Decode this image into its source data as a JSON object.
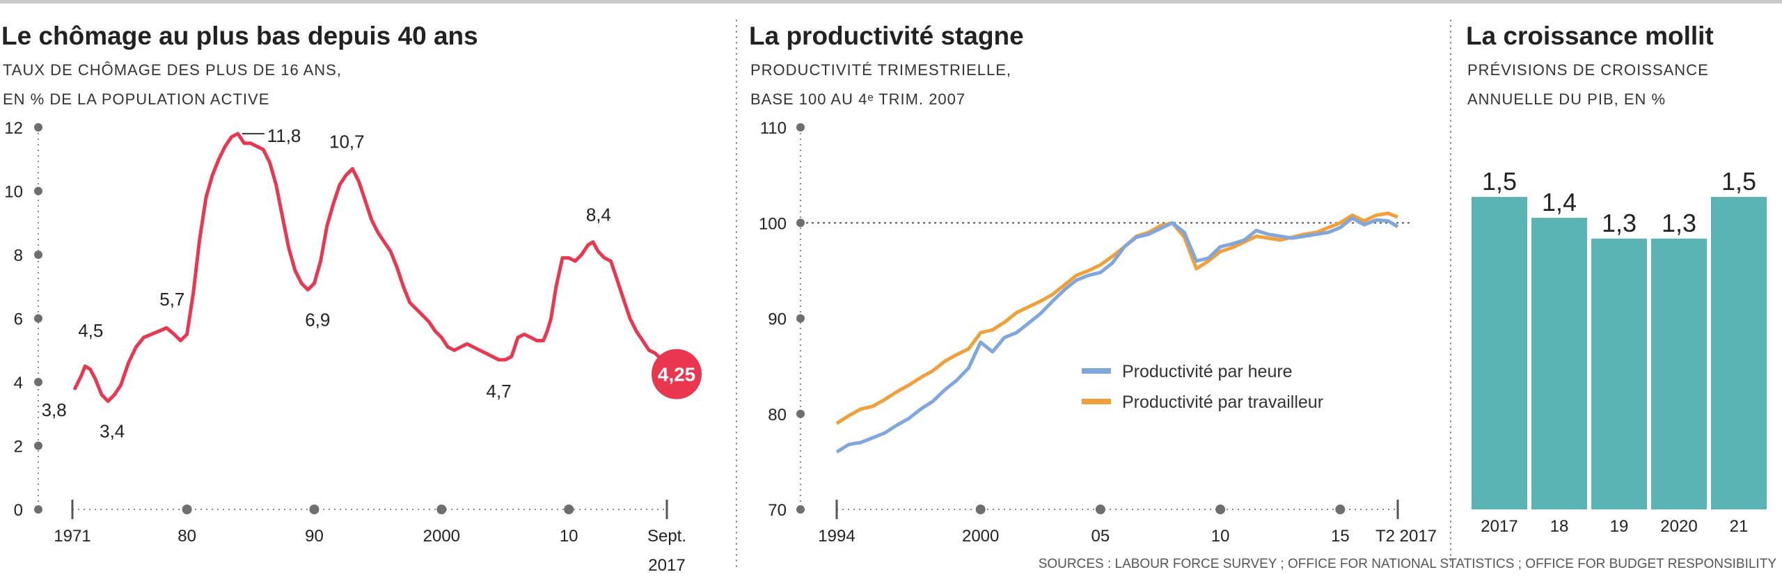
{
  "panels": [
    {
      "title": "Le chômage au plus bas depuis 40 ans",
      "subtitle_line1": "TAUX DE CHÔMAGE DES PLUS DE 16 ANS,",
      "subtitle_line2": "EN % DE LA POPULATION ACTIVE"
    },
    {
      "title": "La productivité stagne",
      "subtitle_line1": "PRODUCTIVITÉ TRIMESTRIELLE,",
      "subtitle_line2": "BASE 100 AU 4ᵉ TRIM. 2007"
    },
    {
      "title": "La croissance mollit",
      "subtitle_line1": "PRÉVISIONS DE CROISSANCE",
      "subtitle_line2": "ANNUELLE DU PIB, EN %"
    }
  ],
  "source": "SOURCES : LABOUR FORCE SURVEY ; OFFICE FOR NATIONAL STATISTICS ; OFFICE FOR BUDGET RESPONSIBILITY",
  "colors": {
    "unemployment": "#e8374f",
    "per_hour": "#7fa6dd",
    "per_worker": "#f0a03a",
    "bars": "#5ab4b4",
    "text": "#222222",
    "axis": "#666666"
  },
  "chart_data": [
    {
      "type": "line",
      "title": "Le chômage au plus bas depuis 40 ans",
      "ylabel": "TAUX DE CHÔMAGE DES PLUS DE 16 ANS, EN % DE LA POPULATION ACTIVE",
      "xlim": [
        1971,
        2017.7
      ],
      "ylim": [
        0,
        12
      ],
      "yticks": [
        "0",
        "2",
        "4",
        "6",
        "8",
        "10",
        "12"
      ],
      "xticks": [
        {
          "x": 1971,
          "label": "1971"
        },
        {
          "x": 1980,
          "label": "80"
        },
        {
          "x": 1990,
          "label": "90"
        },
        {
          "x": 2000,
          "label": "2000"
        },
        {
          "x": 2010,
          "label": "10"
        },
        {
          "x": 2017.7,
          "label": "Sept.",
          "label2": "2017"
        }
      ],
      "x": [
        1971.2,
        1971.7,
        1972.0,
        1972.4,
        1972.8,
        1973.3,
        1973.8,
        1974.3,
        1974.8,
        1975.4,
        1976.0,
        1976.6,
        1977.2,
        1977.8,
        1978.4,
        1979.0,
        1979.5,
        1980.0,
        1980.5,
        1981.0,
        1981.5,
        1982.0,
        1982.5,
        1983.0,
        1983.5,
        1984.0,
        1984.5,
        1985.0,
        1985.5,
        1986.0,
        1986.5,
        1987.0,
        1987.5,
        1988.0,
        1988.5,
        1989.0,
        1989.5,
        1990.0,
        1990.5,
        1991.0,
        1991.5,
        1992.0,
        1992.5,
        1993.0,
        1993.5,
        1994.0,
        1994.5,
        1995.0,
        1995.5,
        1996.0,
        1996.5,
        1997.0,
        1997.5,
        1998.0,
        1998.5,
        1999.0,
        1999.5,
        2000.0,
        2000.5,
        2001.0,
        2001.5,
        2002.0,
        2002.5,
        2003.0,
        2003.5,
        2004.0,
        2004.5,
        2005.0,
        2005.5,
        2006.0,
        2006.5,
        2007.0,
        2007.5,
        2008.0,
        2008.3,
        2008.6,
        2009.0,
        2009.5,
        2010.0,
        2010.5,
        2011.0,
        2011.5,
        2011.9,
        2012.3,
        2012.8,
        2013.3,
        2013.8,
        2014.3,
        2014.8,
        2015.3,
        2015.8,
        2016.3,
        2016.8,
        2017.3,
        2017.7
      ],
      "series": [
        {
          "values": [
            3.8,
            4.2,
            4.5,
            4.4,
            4.1,
            3.6,
            3.4,
            3.6,
            3.9,
            4.6,
            5.1,
            5.4,
            5.5,
            5.6,
            5.7,
            5.5,
            5.3,
            5.5,
            6.8,
            8.5,
            9.8,
            10.5,
            11.0,
            11.4,
            11.7,
            11.8,
            11.5,
            11.5,
            11.4,
            11.3,
            10.9,
            10.2,
            9.2,
            8.2,
            7.5,
            7.1,
            6.9,
            7.1,
            7.8,
            8.9,
            9.6,
            10.2,
            10.5,
            10.7,
            10.3,
            9.7,
            9.1,
            8.7,
            8.4,
            8.1,
            7.6,
            7.0,
            6.5,
            6.3,
            6.1,
            5.9,
            5.6,
            5.4,
            5.1,
            5.0,
            5.1,
            5.2,
            5.1,
            5.0,
            4.9,
            4.8,
            4.7,
            4.7,
            4.8,
            5.4,
            5.5,
            5.4,
            5.3,
            5.3,
            5.6,
            6.0,
            7.0,
            7.9,
            7.9,
            7.8,
            8.0,
            8.3,
            8.4,
            8.1,
            7.9,
            7.8,
            7.2,
            6.6,
            6.0,
            5.6,
            5.3,
            5.0,
            4.9,
            4.7,
            4.25
          ]
        }
      ],
      "annotations": [
        {
          "label": "3,8",
          "x": 1971.2,
          "y": 3.8
        },
        {
          "label": "4,5",
          "x": 1972.0,
          "y": 4.5
        },
        {
          "label": "3,4",
          "x": 1973.8,
          "y": 3.4
        },
        {
          "label": "5,7",
          "x": 1978.4,
          "y": 5.7
        },
        {
          "label": "11,8",
          "x": 1984.0,
          "y": 11.8
        },
        {
          "label": "6,9",
          "x": 1989.5,
          "y": 6.9
        },
        {
          "label": "10,7",
          "x": 1993.0,
          "y": 10.7
        },
        {
          "label": "4,7",
          "x": 2004.5,
          "y": 4.7
        },
        {
          "label": "8,4",
          "x": 2011.9,
          "y": 8.4
        },
        {
          "label": "4,25",
          "x": 2017.7,
          "y": 4.25
        }
      ]
    },
    {
      "type": "line",
      "title": "La productivité stagne",
      "ylabel": "PRODUCTIVITÉ TRIMESTRIELLE, BASE 100 AU 4ᵉ TRIM. 2007",
      "xlim": [
        1994,
        2017.4
      ],
      "ylim": [
        70,
        110
      ],
      "yticks": [
        "70",
        "80",
        "90",
        "100",
        "110"
      ],
      "reference_line": 100,
      "xticks": [
        {
          "x": 1994,
          "label": "1994"
        },
        {
          "x": 2000,
          "label": "2000"
        },
        {
          "x": 2005,
          "label": "05"
        },
        {
          "x": 2010,
          "label": "10"
        },
        {
          "x": 2015,
          "label": "15"
        },
        {
          "x": 2017.4,
          "label": "T2 2017"
        }
      ],
      "x": [
        1994.0,
        1994.5,
        1995.0,
        1995.5,
        1996.0,
        1996.5,
        1997.0,
        1997.5,
        1998.0,
        1998.5,
        1999.0,
        1999.5,
        2000.0,
        2000.5,
        2001.0,
        2001.5,
        2002.0,
        2002.5,
        2003.0,
        2003.5,
        2004.0,
        2004.5,
        2005.0,
        2005.5,
        2006.0,
        2006.5,
        2007.0,
        2007.5,
        2008.0,
        2008.5,
        2009.0,
        2009.5,
        2010.0,
        2010.5,
        2011.0,
        2011.5,
        2012.0,
        2012.5,
        2013.0,
        2013.5,
        2014.0,
        2014.5,
        2015.0,
        2015.5,
        2016.0,
        2016.5,
        2017.0,
        2017.4
      ],
      "series": [
        {
          "name": "Productivité par heure",
          "values": [
            76.0,
            76.8,
            77.0,
            77.5,
            78.0,
            78.8,
            79.5,
            80.5,
            81.3,
            82.5,
            83.5,
            84.8,
            87.5,
            86.5,
            88.0,
            88.5,
            89.5,
            90.5,
            91.8,
            93.0,
            94.0,
            94.5,
            94.8,
            95.8,
            97.5,
            98.5,
            98.8,
            99.4,
            100.0,
            99.0,
            96.0,
            96.3,
            97.5,
            97.8,
            98.2,
            99.2,
            98.8,
            98.6,
            98.4,
            98.6,
            98.8,
            99.0,
            99.5,
            100.5,
            99.8,
            100.3,
            100.2,
            99.6
          ]
        },
        {
          "name": "Productivité par travailleur",
          "values": [
            79.0,
            79.8,
            80.5,
            80.8,
            81.5,
            82.3,
            83.0,
            83.8,
            84.5,
            85.5,
            86.2,
            86.8,
            88.5,
            88.8,
            89.6,
            90.6,
            91.2,
            91.8,
            92.5,
            93.5,
            94.5,
            95.0,
            95.6,
            96.5,
            97.5,
            98.6,
            99.0,
            99.7,
            100.0,
            98.5,
            95.2,
            96.0,
            97.0,
            97.4,
            98.0,
            98.6,
            98.4,
            98.2,
            98.5,
            98.8,
            99.0,
            99.5,
            100.0,
            100.8,
            100.2,
            100.8,
            101.0,
            100.6
          ]
        }
      ],
      "legend": "center-right"
    },
    {
      "type": "bar",
      "title": "La croissance mollit",
      "ylabel": "PRÉVISIONS DE CROISSANCE ANNUELLE DU PIB, EN %",
      "categories": [
        "2017",
        "18",
        "19",
        "2020",
        "21"
      ],
      "values": [
        1.5,
        1.4,
        1.3,
        1.3,
        1.5
      ],
      "value_labels": [
        "1,5",
        "1,4",
        "1,3",
        "1,3",
        "1,5"
      ],
      "ylim": [
        0,
        1.5
      ]
    }
  ]
}
